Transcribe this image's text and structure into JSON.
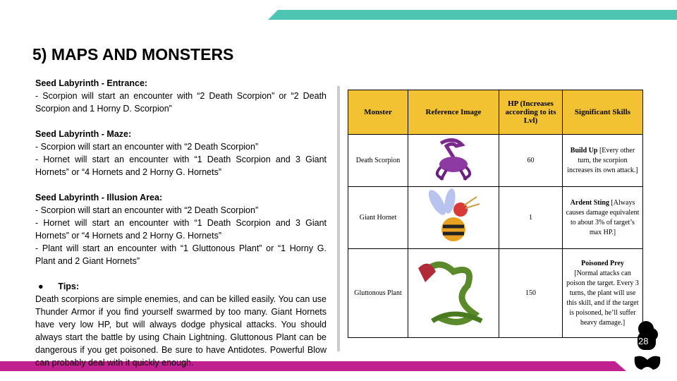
{
  "title": "5) MAPS AND MONSTERS",
  "sections": [
    {
      "heading": "Seed Labyrinth - Entrance:",
      "lines": [
        "- Scorpion will start an encounter with “2 Death Scorpion” or “2 Death Scorpion and 1 Horny D. Scorpion”"
      ]
    },
    {
      "heading": "Seed Labyrinth - Maze:",
      "lines": [
        "- Scorpion will start an encounter with “2 Death Scorpion”",
        "- Hornet will start an encounter with “1 Death Scorpion and 3 Giant Hornets” or “4 Hornets and 2 Horny G. Hornets”"
      ]
    },
    {
      "heading": "Seed Labyrinth - Illusion Area:",
      "lines": [
        "- Scorpion will start an encounter with “2 Death Scorpion”",
        "- Hornet will start an encounter with “1 Death Scorpion and 3 Giant Hornets” or “4 Hornets and 2 Horny G. Hornets”",
        "- Plant will start an encounter with “1 Gluttonous Plant” or “1 Horny G. Plant and 2 Giant Hornets”"
      ]
    }
  ],
  "tips": {
    "bullet": "●",
    "heading": "Tips:",
    "text": "Death scorpions are simple enemies, and can be killed easily. You can use Thunder Armor if you find yourself swarmed by too many. Giant Hornets have very low HP, but will always dodge physical attacks. You should always start the battle by using Chain Lightning. Gluttonous Plant can be dangerous if you get poisoned. Be sure to have Antidotes. Powerful Blow can probably deal with it quickly enough."
  },
  "table": {
    "headers": [
      "Monster",
      "Reference Image",
      "HP (Increases according to its Lvl)",
      "Significant Skills"
    ],
    "rows": [
      {
        "monster": "Death Scorpion",
        "image": "scorpion-image",
        "hp": "60",
        "skill": "Build Up",
        "desc": " [Every other turn, the scorpion increases its own attack.]"
      },
      {
        "monster": "Giant Hornet",
        "image": "hornet-image",
        "hp": "1",
        "skill": "Ardent Sting",
        "desc": " [Always causes damage equivalent to about 3% of target’s max HP.]"
      },
      {
        "monster": "Gluttonous Plant",
        "image": "plant-image",
        "hp": "150",
        "skill": "Poisoned Prey",
        "desc": "[Normal attacks can poison the target. Every 3 turns, the plant will use this skill, and if the target is poisoned, he’ll suffer heavy damage.]"
      }
    ]
  },
  "page_number": "28",
  "colors": {
    "teal": "#4cc5b3",
    "magenta": "#c0218f",
    "header": "#f2c232"
  }
}
